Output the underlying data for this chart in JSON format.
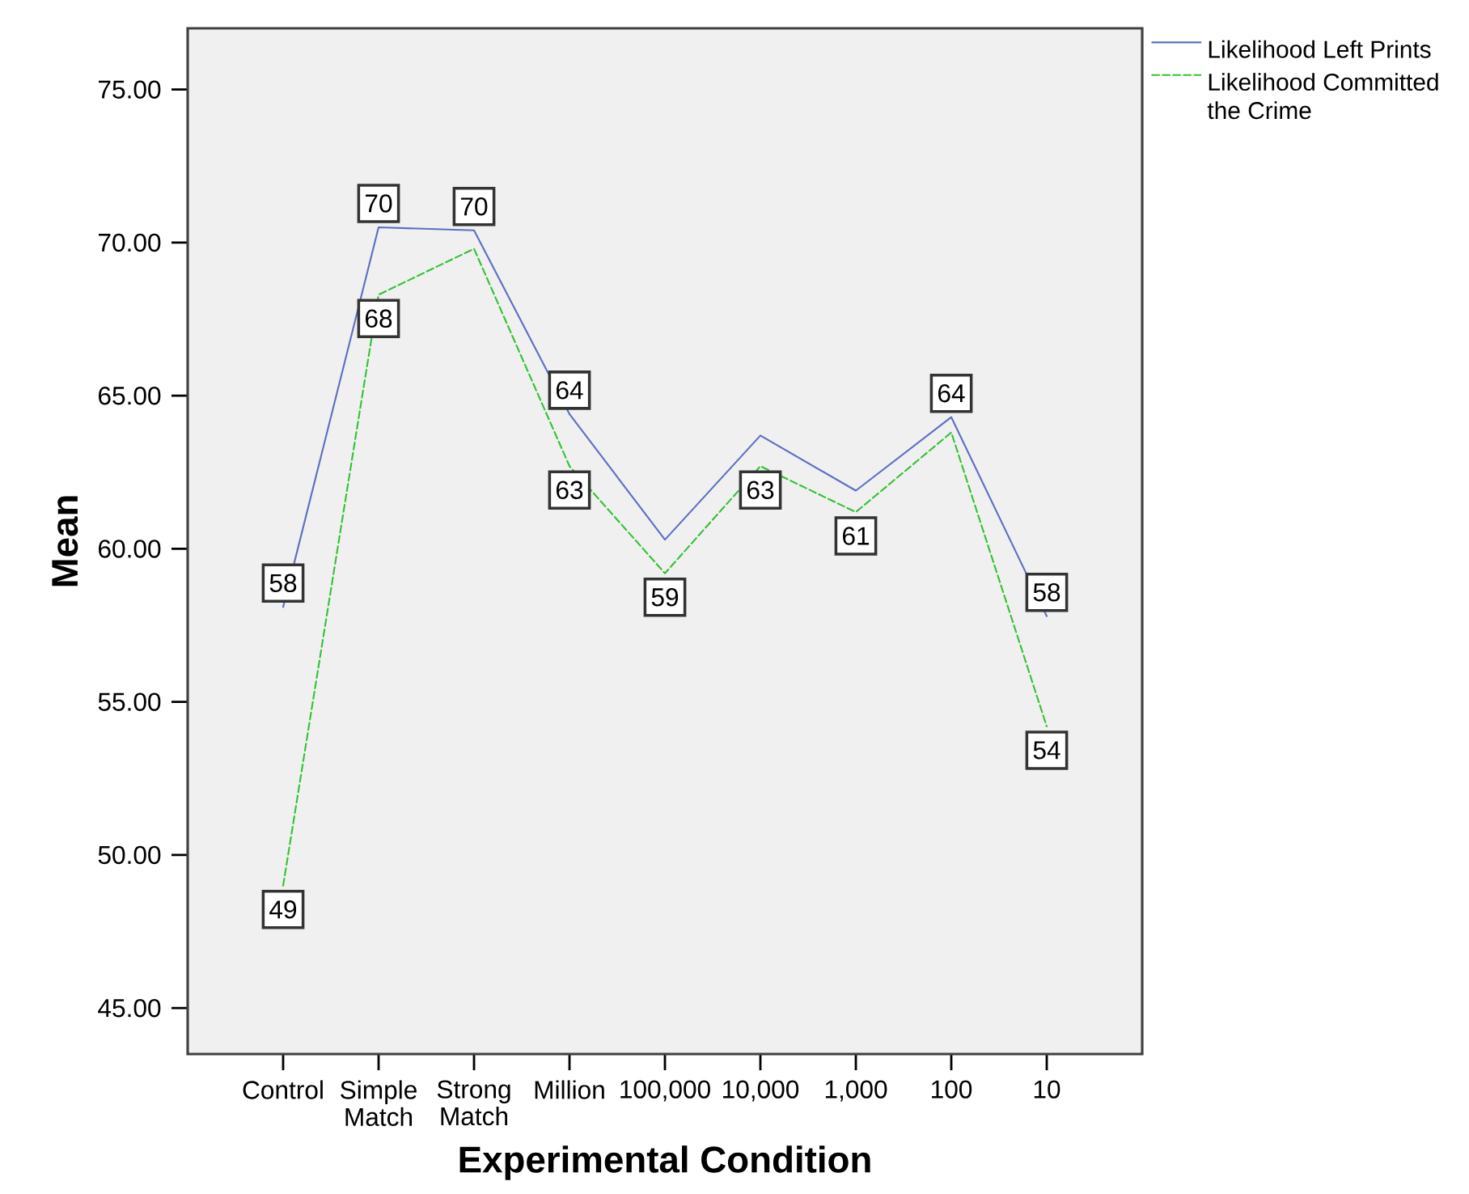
{
  "chart_data": {
    "type": "line",
    "xlabel": "Experimental Condition",
    "ylabel": "Mean",
    "categories": [
      "Control",
      "Simple Match",
      "Strong Match",
      "Million",
      "100,000",
      "10,000",
      "1,000",
      "100",
      "10"
    ],
    "series": [
      {
        "name": "Likelihood Left Prints",
        "color": "#5b6fc2",
        "line_style": "solid",
        "values": [
          58.1,
          70.5,
          70.4,
          64.4,
          60.3,
          63.7,
          61.9,
          64.3,
          57.8
        ],
        "value_labels": [
          "58",
          "70",
          "70",
          "64",
          null,
          null,
          null,
          "64",
          "58"
        ]
      },
      {
        "name": "Likelihood Committed the Crime",
        "color": "#33c233",
        "line_style": "dashed",
        "values": [
          49.0,
          68.3,
          69.8,
          62.7,
          59.2,
          62.7,
          61.2,
          63.8,
          54.2
        ],
        "value_labels": [
          "49",
          "68",
          null,
          "63",
          "59",
          "63",
          "61",
          null,
          "54"
        ]
      }
    ],
    "ylim": [
      43.5,
      77
    ],
    "yticks": [
      {
        "value": 45,
        "label": "45.00"
      },
      {
        "value": 50,
        "label": "50.00"
      },
      {
        "value": 55,
        "label": "55.00"
      },
      {
        "value": 60,
        "label": "60.00"
      },
      {
        "value": 65,
        "label": "65.00"
      },
      {
        "value": 70,
        "label": "70.00"
      },
      {
        "value": 75,
        "label": "75.00"
      }
    ],
    "legend": "top right",
    "grid": false,
    "marker": "none"
  }
}
